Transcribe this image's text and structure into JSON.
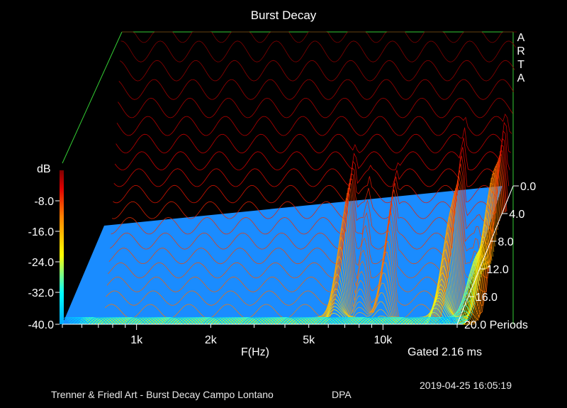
{
  "chart_data": {
    "type": "waterfall-3d",
    "title": "Burst Decay",
    "brand_letters": [
      "A",
      "R",
      "T",
      "A"
    ],
    "xlabel": "F(Hz)",
    "ylabel": "dB",
    "zlabel": "Periods",
    "x_ticks": [
      "1k",
      "2k",
      "5k",
      "10k"
    ],
    "x_tick_values": [
      1000,
      2000,
      5000,
      10000
    ],
    "x_range_hz": [
      500,
      20000
    ],
    "x_scale": "log",
    "y_ticks": [
      "-8.0",
      "-16.0",
      "-24.0",
      "-32.0",
      "-40.0"
    ],
    "y_tick_values": [
      -8,
      -16,
      -24,
      -32,
      -40
    ],
    "y_range_db": [
      -40,
      0
    ],
    "z_ticks": [
      "0.0",
      "4.0",
      "8.0",
      "12.0",
      "16.0",
      "20.0 Periods"
    ],
    "z_tick_values": [
      0,
      4,
      8,
      12,
      16,
      20
    ],
    "z_range_periods": [
      0,
      20
    ],
    "colormap": [
      "#00a8ff",
      "#00ffff",
      "#ffff00",
      "#ff8000",
      "#e00000",
      "#800000"
    ],
    "floor_color": "#1a8cff",
    "gated": "Gated 2.16 ms",
    "peaks": [
      {
        "freq_hz": 4700,
        "decay_periods": 11
      },
      {
        "freq_hz": 5500,
        "decay_periods": 8
      },
      {
        "freq_hz": 7000,
        "decay_periods": 9
      },
      {
        "freq_hz": 9000,
        "decay_periods": 4
      },
      {
        "freq_hz": 13000,
        "decay_periods": 13
      },
      {
        "freq_hz": 15500,
        "decay_periods": 7
      },
      {
        "freq_hz": 19000,
        "decay_periods": 17
      }
    ]
  },
  "footer": {
    "description": "Trenner & Friedl Art - Burst Decay Campo Lontano",
    "mic": "DPA",
    "timestamp": "2019-04-25  16:05:19"
  }
}
